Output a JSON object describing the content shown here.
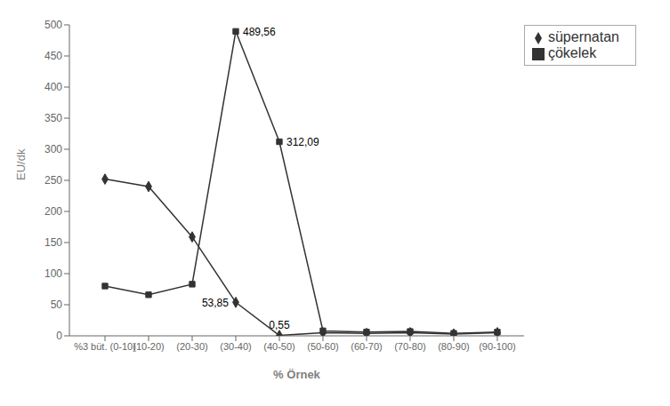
{
  "chart_data": {
    "type": "line",
    "xlabel": "% Örnek",
    "ylabel": "EU/dk",
    "categories": [
      "%3 büt. (0-10)",
      "(10-20)",
      "(20-30)",
      "(30-40)",
      "(40-50)",
      "(50-60)",
      "(60-70)",
      "(70-80)",
      "(80-90)",
      "(90-100)"
    ],
    "series": [
      {
        "name": "süpernatan",
        "color": "#333333",
        "marker": "diamond",
        "values": [
          252,
          240,
          159,
          53.85,
          0.55,
          5,
          4,
          5,
          3,
          5
        ]
      },
      {
        "name": "çökelek",
        "color": "#333333",
        "marker": "square",
        "values": [
          80,
          66,
          83,
          489.56,
          312.09,
          8,
          6,
          7,
          4,
          6
        ]
      }
    ],
    "ylim": [
      0,
      500
    ],
    "yticks": [
      0,
      50,
      100,
      150,
      200,
      250,
      300,
      350,
      400,
      450,
      500
    ],
    "grid": false,
    "legend": "upper right",
    "annotations": [
      {
        "text": "53,85",
        "series": "süpernatan",
        "x": "(30-40)",
        "y": 53.85
      },
      {
        "text": "0,55",
        "series": "süpernatan",
        "x": "(40-50)",
        "y": 0.55
      },
      {
        "text": "489,56",
        "series": "çökelek",
        "x": "(30-40)",
        "y": 489.56
      },
      {
        "text": "312,09",
        "series": "çökelek",
        "x": "(40-50)",
        "y": 312.09
      }
    ]
  }
}
